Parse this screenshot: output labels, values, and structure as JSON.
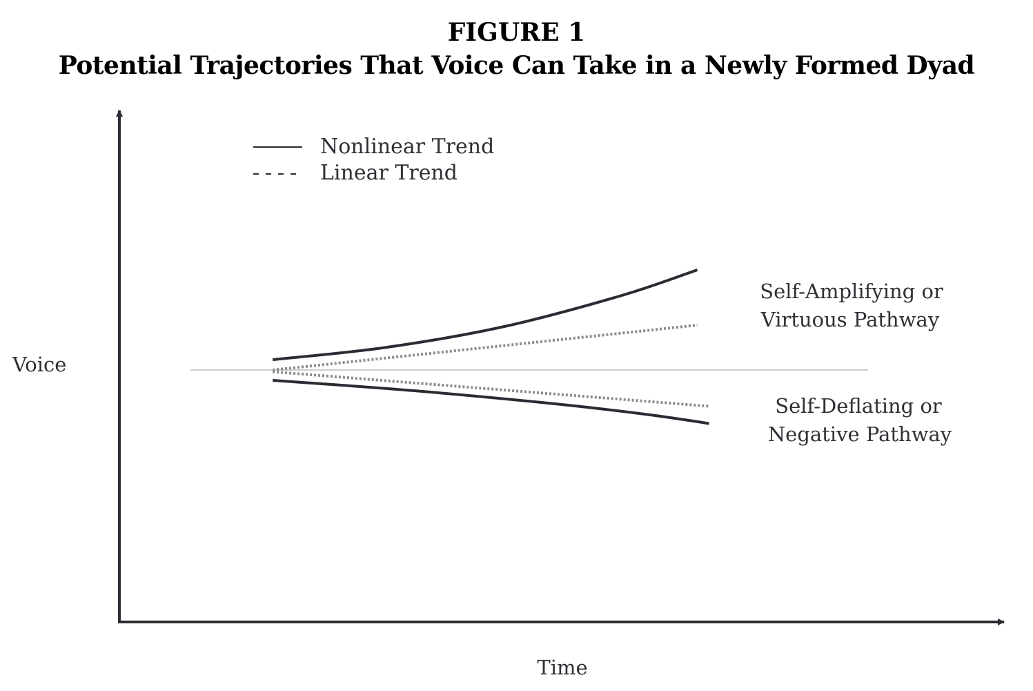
{
  "figure": {
    "number": "FIGURE 1",
    "title": "Potential Trajectories That Voice Can Take in a Newly Formed Dyad"
  },
  "chart_data": {
    "type": "line",
    "title": "Potential Trajectories That Voice Can Take in a Newly Formed Dyad",
    "xlabel": "Time",
    "ylabel": "Voice",
    "xlim": [
      0,
      1.5
    ],
    "ylim": [
      -1,
      1
    ],
    "grid": false,
    "legend": {
      "placement": "top-left",
      "entries": [
        {
          "label": "Nonlinear Trend",
          "style": "solid"
        },
        {
          "label": "Linear Trend",
          "style": "dotted"
        }
      ]
    },
    "baseline": {
      "y": 0
    },
    "series": [
      {
        "name": "Nonlinear Trend",
        "pathway": "Self-Amplifying or Virtuous Pathway",
        "style": "solid",
        "color": "#2b2b33",
        "x": [
          0.26,
          0.45,
          0.65,
          0.85,
          0.98
        ],
        "y": [
          0.06,
          0.13,
          0.25,
          0.43,
          0.58
        ]
      },
      {
        "name": "Linear Trend",
        "pathway": "Self-Amplifying or Virtuous Pathway",
        "style": "dotted",
        "color": "#8a8a8e",
        "x": [
          0.26,
          0.98
        ],
        "y": [
          0.0,
          0.26
        ]
      },
      {
        "name": "Linear Trend",
        "pathway": "Self-Deflating or Negative Pathway",
        "style": "dotted",
        "color": "#8a8a8e",
        "x": [
          0.26,
          1.0
        ],
        "y": [
          -0.01,
          -0.21
        ]
      },
      {
        "name": "Nonlinear Trend",
        "pathway": "Self-Deflating or Negative Pathway",
        "style": "solid",
        "color": "#2b2b33",
        "x": [
          0.26,
          0.5,
          0.75,
          0.9,
          1.0
        ],
        "y": [
          -0.06,
          -0.12,
          -0.2,
          -0.26,
          -0.31
        ]
      }
    ],
    "annotations": [
      {
        "lines": [
          "Self-Amplifying or",
          "Virtuous Pathway"
        ]
      },
      {
        "lines": [
          "Self-Deflating or",
          "Negative Pathway"
        ]
      }
    ]
  }
}
